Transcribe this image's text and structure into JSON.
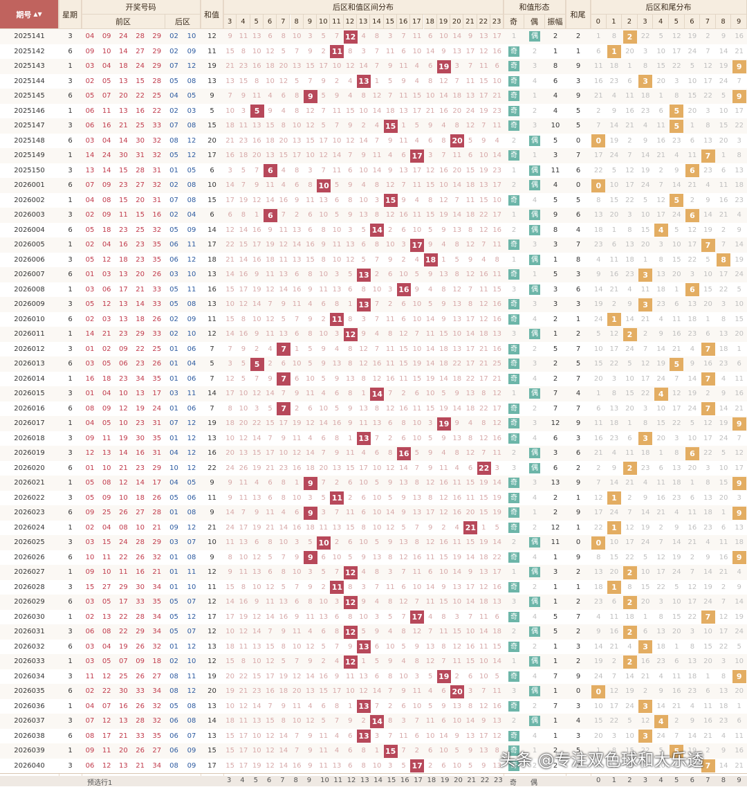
{
  "headers": {
    "issue": "期号",
    "week": "星期",
    "open": "开奖号码",
    "front": "前区",
    "back": "后区",
    "sum": "和值",
    "dist": "后区和值区间分布",
    "form": "和值形态",
    "odd": "奇",
    "even": "偶",
    "amp": "振幅",
    "tail": "和尾",
    "taildist": "后区和尾分布"
  },
  "dist_cols": [
    3,
    4,
    5,
    6,
    7,
    8,
    9,
    10,
    11,
    12,
    13,
    14,
    15,
    16,
    17,
    18,
    19,
    20,
    21,
    22,
    23
  ],
  "tail_cols": [
    0,
    1,
    2,
    3,
    4,
    5,
    6,
    7,
    8,
    9
  ],
  "footer_label": "预选行1",
  "watermark": "头条 @专注双色球和大乐透",
  "rows": [
    {
      "issue": "2025141",
      "w": 3,
      "front": [
        "04",
        "09",
        "24",
        "28",
        "29"
      ],
      "back": [
        "02",
        "10"
      ],
      "sum": 12,
      "parity": "偶",
      "amp": 2,
      "tail": 2
    },
    {
      "issue": "2025142",
      "w": 6,
      "front": [
        "09",
        "10",
        "14",
        "27",
        "29"
      ],
      "back": [
        "02",
        "09"
      ],
      "sum": 11,
      "parity": "奇",
      "amp": 1,
      "tail": 1
    },
    {
      "issue": "2025143",
      "w": 1,
      "front": [
        "03",
        "04",
        "18",
        "24",
        "29"
      ],
      "back": [
        "07",
        "12"
      ],
      "sum": 19,
      "parity": "奇",
      "amp": 8,
      "tail": 9
    },
    {
      "issue": "2025144",
      "w": 3,
      "front": [
        "02",
        "05",
        "13",
        "15",
        "28"
      ],
      "back": [
        "05",
        "08"
      ],
      "sum": 13,
      "parity": "奇",
      "amp": 6,
      "tail": 3
    },
    {
      "issue": "2025145",
      "w": 6,
      "front": [
        "05",
        "07",
        "20",
        "22",
        "25"
      ],
      "back": [
        "04",
        "05"
      ],
      "sum": 9,
      "parity": "奇",
      "amp": 4,
      "tail": 9
    },
    {
      "issue": "2025146",
      "w": 1,
      "front": [
        "06",
        "11",
        "13",
        "16",
        "22"
      ],
      "back": [
        "02",
        "03"
      ],
      "sum": 5,
      "parity": "奇",
      "amp": 4,
      "tail": 5
    },
    {
      "issue": "2025147",
      "w": 3,
      "front": [
        "06",
        "16",
        "21",
        "25",
        "33"
      ],
      "back": [
        "07",
        "08"
      ],
      "sum": 15,
      "parity": "奇",
      "amp": 10,
      "tail": 5
    },
    {
      "issue": "2025148",
      "w": 6,
      "front": [
        "03",
        "04",
        "14",
        "30",
        "32"
      ],
      "back": [
        "08",
        "12"
      ],
      "sum": 20,
      "parity": "偶",
      "amp": 5,
      "tail": 0
    },
    {
      "issue": "2025149",
      "w": 1,
      "front": [
        "14",
        "24",
        "30",
        "31",
        "32"
      ],
      "back": [
        "05",
        "12"
      ],
      "sum": 17,
      "parity": "奇",
      "amp": 3,
      "tail": 7
    },
    {
      "issue": "2025150",
      "w": 3,
      "front": [
        "13",
        "14",
        "15",
        "28",
        "31"
      ],
      "back": [
        "01",
        "05"
      ],
      "sum": 6,
      "parity": "偶",
      "amp": 11,
      "tail": 6
    },
    {
      "issue": "2026001",
      "w": 6,
      "front": [
        "07",
        "09",
        "23",
        "27",
        "32"
      ],
      "back": [
        "02",
        "08"
      ],
      "sum": 10,
      "parity": "偶",
      "amp": 4,
      "tail": 0
    },
    {
      "issue": "2026002",
      "w": 1,
      "front": [
        "04",
        "08",
        "15",
        "20",
        "31"
      ],
      "back": [
        "07",
        "08"
      ],
      "sum": 15,
      "parity": "奇",
      "amp": 5,
      "tail": 5
    },
    {
      "issue": "2026003",
      "w": 3,
      "front": [
        "02",
        "09",
        "11",
        "15",
        "16"
      ],
      "back": [
        "02",
        "04"
      ],
      "sum": 6,
      "parity": "偶",
      "amp": 9,
      "tail": 6
    },
    {
      "issue": "2026004",
      "w": 6,
      "front": [
        "05",
        "18",
        "23",
        "25",
        "32"
      ],
      "back": [
        "05",
        "09"
      ],
      "sum": 14,
      "parity": "偶",
      "amp": 8,
      "tail": 4
    },
    {
      "issue": "2026005",
      "w": 1,
      "front": [
        "02",
        "04",
        "16",
        "23",
        "35"
      ],
      "back": [
        "06",
        "11"
      ],
      "sum": 17,
      "parity": "奇",
      "amp": 3,
      "tail": 7
    },
    {
      "issue": "2026006",
      "w": 3,
      "front": [
        "05",
        "12",
        "18",
        "23",
        "35"
      ],
      "back": [
        "06",
        "12"
      ],
      "sum": 18,
      "parity": "偶",
      "amp": 1,
      "tail": 8
    },
    {
      "issue": "2026007",
      "w": 6,
      "front": [
        "01",
        "03",
        "13",
        "20",
        "26"
      ],
      "back": [
        "03",
        "10"
      ],
      "sum": 13,
      "parity": "奇",
      "amp": 5,
      "tail": 3
    },
    {
      "issue": "2026008",
      "w": 1,
      "front": [
        "03",
        "06",
        "17",
        "21",
        "33"
      ],
      "back": [
        "05",
        "11"
      ],
      "sum": 16,
      "parity": "偶",
      "amp": 3,
      "tail": 6
    },
    {
      "issue": "2026009",
      "w": 3,
      "front": [
        "05",
        "12",
        "13",
        "14",
        "33"
      ],
      "back": [
        "05",
        "08"
      ],
      "sum": 13,
      "parity": "奇",
      "amp": 3,
      "tail": 3
    },
    {
      "issue": "2026010",
      "w": 6,
      "front": [
        "02",
        "03",
        "13",
        "18",
        "26"
      ],
      "back": [
        "02",
        "09"
      ],
      "sum": 11,
      "parity": "奇",
      "amp": 2,
      "tail": 1
    },
    {
      "issue": "2026011",
      "w": 1,
      "front": [
        "14",
        "21",
        "23",
        "29",
        "33"
      ],
      "back": [
        "02",
        "10"
      ],
      "sum": 12,
      "parity": "偶",
      "amp": 1,
      "tail": 2
    },
    {
      "issue": "2026012",
      "w": 3,
      "front": [
        "01",
        "02",
        "09",
        "22",
        "25"
      ],
      "back": [
        "01",
        "06"
      ],
      "sum": 7,
      "parity": "奇",
      "amp": 5,
      "tail": 7
    },
    {
      "issue": "2026013",
      "w": 6,
      "front": [
        "03",
        "05",
        "06",
        "23",
        "26"
      ],
      "back": [
        "01",
        "04"
      ],
      "sum": 5,
      "parity": "奇",
      "amp": 2,
      "tail": 5
    },
    {
      "issue": "2026014",
      "w": 1,
      "front": [
        "16",
        "18",
        "23",
        "34",
        "35"
      ],
      "back": [
        "01",
        "06"
      ],
      "sum": 7,
      "parity": "奇",
      "amp": 2,
      "tail": 7
    },
    {
      "issue": "2026015",
      "w": 3,
      "front": [
        "01",
        "04",
        "10",
        "13",
        "17"
      ],
      "back": [
        "03",
        "11"
      ],
      "sum": 14,
      "parity": "偶",
      "amp": 7,
      "tail": 4
    },
    {
      "issue": "2026016",
      "w": 6,
      "front": [
        "08",
        "09",
        "12",
        "19",
        "24"
      ],
      "back": [
        "01",
        "06"
      ],
      "sum": 7,
      "parity": "奇",
      "amp": 7,
      "tail": 7
    },
    {
      "issue": "2026017",
      "w": 1,
      "front": [
        "04",
        "05",
        "10",
        "23",
        "31"
      ],
      "back": [
        "07",
        "12"
      ],
      "sum": 19,
      "parity": "奇",
      "amp": 12,
      "tail": 9
    },
    {
      "issue": "2026018",
      "w": 3,
      "front": [
        "09",
        "11",
        "19",
        "30",
        "35"
      ],
      "back": [
        "01",
        "12"
      ],
      "sum": 13,
      "parity": "奇",
      "amp": 6,
      "tail": 3
    },
    {
      "issue": "2026019",
      "w": 3,
      "front": [
        "12",
        "13",
        "14",
        "16",
        "31"
      ],
      "back": [
        "04",
        "12"
      ],
      "sum": 16,
      "parity": "偶",
      "amp": 3,
      "tail": 6
    },
    {
      "issue": "2026020",
      "w": 6,
      "front": [
        "01",
        "10",
        "21",
        "23",
        "29"
      ],
      "back": [
        "10",
        "12"
      ],
      "sum": 22,
      "parity": "偶",
      "amp": 6,
      "tail": 2
    },
    {
      "issue": "2026021",
      "w": 1,
      "front": [
        "05",
        "08",
        "12",
        "14",
        "17"
      ],
      "back": [
        "04",
        "05"
      ],
      "sum": 9,
      "parity": "奇",
      "amp": 13,
      "tail": 9
    },
    {
      "issue": "2026022",
      "w": 3,
      "front": [
        "05",
        "09",
        "10",
        "18",
        "26"
      ],
      "back": [
        "05",
        "06"
      ],
      "sum": 11,
      "parity": "奇",
      "amp": 2,
      "tail": 1
    },
    {
      "issue": "2026023",
      "w": 6,
      "front": [
        "09",
        "25",
        "26",
        "27",
        "28"
      ],
      "back": [
        "01",
        "08"
      ],
      "sum": 9,
      "parity": "奇",
      "amp": 2,
      "tail": 9
    },
    {
      "issue": "2026024",
      "w": 1,
      "front": [
        "02",
        "04",
        "08",
        "10",
        "21"
      ],
      "back": [
        "09",
        "12"
      ],
      "sum": 21,
      "parity": "奇",
      "amp": 12,
      "tail": 1
    },
    {
      "issue": "2026025",
      "w": 3,
      "front": [
        "03",
        "15",
        "24",
        "28",
        "29"
      ],
      "back": [
        "03",
        "07"
      ],
      "sum": 10,
      "parity": "偶",
      "amp": 11,
      "tail": 0
    },
    {
      "issue": "2026026",
      "w": 6,
      "front": [
        "10",
        "11",
        "22",
        "26",
        "32"
      ],
      "back": [
        "01",
        "08"
      ],
      "sum": 9,
      "parity": "奇",
      "amp": 1,
      "tail": 9
    },
    {
      "issue": "2026027",
      "w": 1,
      "front": [
        "09",
        "10",
        "11",
        "16",
        "21"
      ],
      "back": [
        "01",
        "11"
      ],
      "sum": 12,
      "parity": "偶",
      "amp": 3,
      "tail": 2
    },
    {
      "issue": "2026028",
      "w": 3,
      "front": [
        "15",
        "27",
        "29",
        "30",
        "34"
      ],
      "back": [
        "01",
        "10"
      ],
      "sum": 11,
      "parity": "奇",
      "amp": 1,
      "tail": 1
    },
    {
      "issue": "2026029",
      "w": 6,
      "front": [
        "03",
        "05",
        "17",
        "33",
        "35"
      ],
      "back": [
        "05",
        "07"
      ],
      "sum": 12,
      "parity": "偶",
      "amp": 1,
      "tail": 2
    },
    {
      "issue": "2026030",
      "w": 1,
      "front": [
        "02",
        "13",
        "22",
        "28",
        "34"
      ],
      "back": [
        "05",
        "12"
      ],
      "sum": 17,
      "parity": "奇",
      "amp": 5,
      "tail": 7
    },
    {
      "issue": "2026031",
      "w": 3,
      "front": [
        "06",
        "08",
        "22",
        "29",
        "34"
      ],
      "back": [
        "05",
        "07"
      ],
      "sum": 12,
      "parity": "偶",
      "amp": 5,
      "tail": 2
    },
    {
      "issue": "2026032",
      "w": 6,
      "front": [
        "03",
        "04",
        "19",
        "26",
        "32"
      ],
      "back": [
        "01",
        "12"
      ],
      "sum": 13,
      "parity": "奇",
      "amp": 1,
      "tail": 3
    },
    {
      "issue": "2026033",
      "w": 1,
      "front": [
        "03",
        "05",
        "07",
        "09",
        "18"
      ],
      "back": [
        "02",
        "10"
      ],
      "sum": 12,
      "parity": "偶",
      "amp": 1,
      "tail": 2
    },
    {
      "issue": "2026034",
      "w": 3,
      "front": [
        "11",
        "12",
        "25",
        "26",
        "27"
      ],
      "back": [
        "08",
        "11"
      ],
      "sum": 19,
      "parity": "奇",
      "amp": 7,
      "tail": 9
    },
    {
      "issue": "2026035",
      "w": 6,
      "front": [
        "02",
        "22",
        "30",
        "33",
        "34"
      ],
      "back": [
        "08",
        "12"
      ],
      "sum": 20,
      "parity": "偶",
      "amp": 1,
      "tail": 0
    },
    {
      "issue": "2026036",
      "w": 1,
      "front": [
        "04",
        "07",
        "16",
        "26",
        "32"
      ],
      "back": [
        "05",
        "08"
      ],
      "sum": 13,
      "parity": "奇",
      "amp": 7,
      "tail": 3
    },
    {
      "issue": "2026037",
      "w": 3,
      "front": [
        "07",
        "12",
        "13",
        "28",
        "32"
      ],
      "back": [
        "06",
        "08"
      ],
      "sum": 14,
      "parity": "偶",
      "amp": 1,
      "tail": 4
    },
    {
      "issue": "2026038",
      "w": 6,
      "front": [
        "08",
        "17",
        "21",
        "33",
        "35"
      ],
      "back": [
        "06",
        "07"
      ],
      "sum": 13,
      "parity": "奇",
      "amp": 1,
      "tail": 3
    },
    {
      "issue": "2026039",
      "w": 1,
      "front": [
        "09",
        "11",
        "20",
        "26",
        "27"
      ],
      "back": [
        "06",
        "09"
      ],
      "sum": 15,
      "parity": "奇",
      "amp": 2,
      "tail": 5
    },
    {
      "issue": "2026040",
      "w": 3,
      "front": [
        "06",
        "12",
        "13",
        "21",
        "34"
      ],
      "back": [
        "08",
        "09"
      ],
      "sum": 17,
      "parity": "奇",
      "amp": 2,
      "tail": 7
    }
  ],
  "colors": {
    "header": "#f6ede0",
    "red_mark": "#b7485a",
    "orange_mark": "#e3ad62",
    "green_tag": "#6cb5a8",
    "front_red": "#c0394a",
    "back_blue": "#2c5aa0"
  }
}
